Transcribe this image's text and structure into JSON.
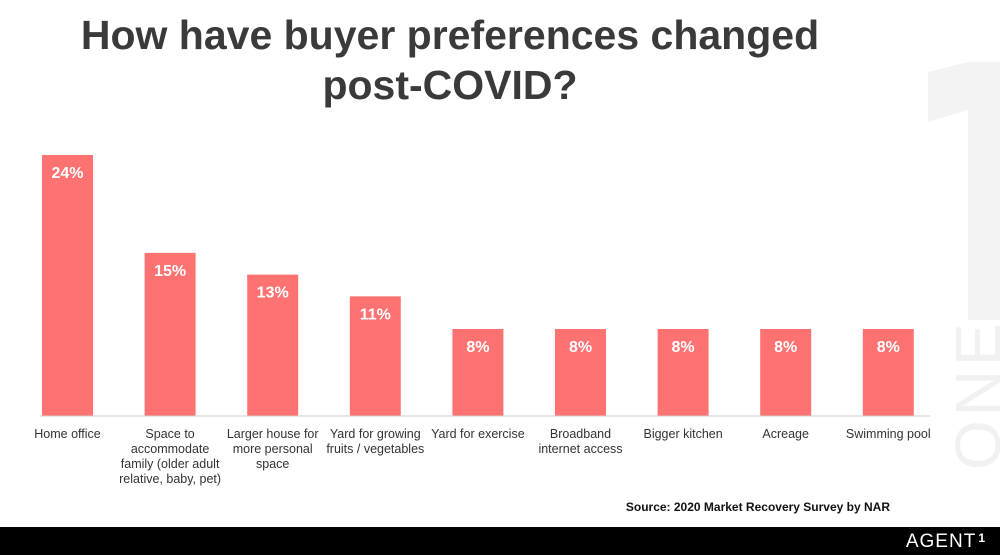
{
  "title": "How have buyer preferences changed\npost-COVID?",
  "source": "Source: 2020 Market Recovery Survey by NAR",
  "brand": {
    "name": "AGENT",
    "mark": "1",
    "side_word": "ONE"
  },
  "colors": {
    "bar": "#ff7272",
    "axis": "#cccccc",
    "title": "#3a3a3a",
    "footer": "#000000"
  },
  "chart_data": {
    "type": "bar",
    "categories": [
      "Home office",
      "Space to accommodate family (older adult relative, baby, pet)",
      "Larger house for more personal space",
      "Yard for growing fruits / vegetables",
      "Yard for exercise",
      "Broadband internet access",
      "Bigger kitchen",
      "Acreage",
      "Swimming pool"
    ],
    "values": [
      24,
      15,
      13,
      11,
      8,
      8,
      8,
      8,
      8
    ],
    "data_labels": [
      "24%",
      "15%",
      "13%",
      "11%",
      "8%",
      "8%",
      "8%",
      "8%",
      "8%"
    ],
    "xlabel": "",
    "ylabel": "",
    "ylim": [
      0,
      24
    ],
    "grid": false,
    "legend": "none"
  }
}
